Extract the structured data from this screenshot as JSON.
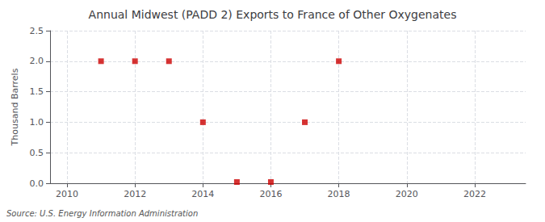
{
  "chart_data": {
    "type": "scatter",
    "title": "Annual Midwest (PADD 2) Exports to France of Other Oxygenates",
    "ylabel": "Thousand Barrels",
    "annotation": "Source: U.S. Energy Information Administration",
    "x": [
      2011,
      2012,
      2013,
      2014,
      2015,
      2016,
      2017,
      2018
    ],
    "values": [
      2.0,
      2.0,
      2.0,
      1.0,
      0.02,
      0.02,
      1.0,
      2.0
    ],
    "color": "#cc0000",
    "marker": "square",
    "xlim": [
      2009.5,
      2023.5
    ],
    "xticks": [
      2010,
      2012,
      2014,
      2016,
      2018,
      2020,
      2022
    ],
    "ylim": [
      0.0,
      2.5
    ],
    "yticks": [
      {
        "value": 0.0,
        "label": "0.0"
      },
      0.5,
      {
        "value": 1.0,
        "label": "1.0"
      },
      1.5,
      {
        "value": 2.0,
        "label": "2.0"
      },
      2.5
    ],
    "grid": true
  }
}
